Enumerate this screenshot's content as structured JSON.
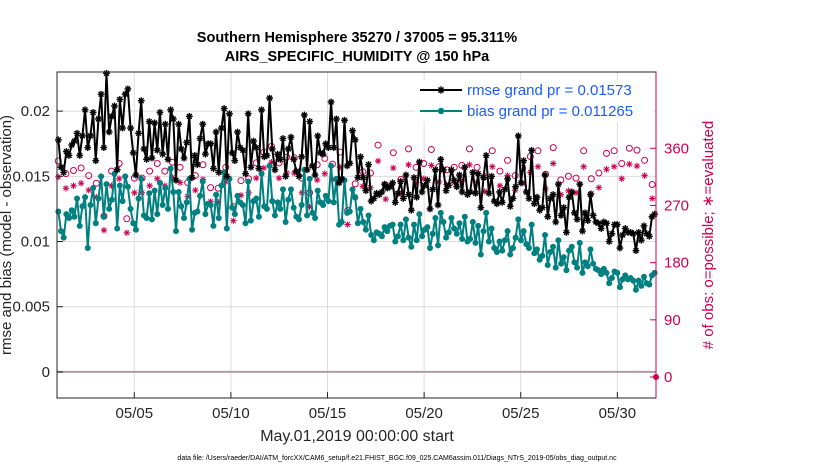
{
  "chart_data": {
    "type": "line",
    "title": "Southern Hemisphere 35270 / 37005 = 95.311%",
    "subtitle": "AIRS_SPECIFIC_HUMIDITY @ 150 hPa",
    "xlabel": "May.01,2019 00:00:00 start",
    "ylabel": "rmse and bias (model - observation)",
    "ylabel_right": "# of obs: o=possible; ∗=evaluated",
    "footnote": "data file: /Users/raeder/DAI/ATM_forcXX/CAM6_setup/f.e21.FHIST_BGC.f09_025.CAM6assim.011/Diags_NTrS_2019-05/obs_diag_output.nc",
    "xlim": [
      1,
      32
    ],
    "ylim": [
      -0.002,
      0.023
    ],
    "ylim_right": [
      -33,
      480
    ],
    "x_ticks": [
      5,
      10,
      15,
      20,
      25,
      30
    ],
    "x_tick_labels": [
      "05/05",
      "05/10",
      "05/15",
      "05/20",
      "05/25",
      "05/30"
    ],
    "y_ticks": [
      0,
      0.005,
      0.01,
      0.015,
      0.02
    ],
    "y_tick_labels": [
      "0",
      "0.005",
      "0.01",
      "0.015",
      "0.02"
    ],
    "y2_ticks": [
      0,
      90,
      180,
      270,
      360
    ],
    "y2_tick_labels": [
      "0",
      "90",
      "180",
      "270",
      "360"
    ],
    "grid": true,
    "legend_position": "top-right",
    "series": [
      {
        "name": "rmse grand pr = 0.01573",
        "color": "#000000",
        "marker": "asterisk",
        "values": [
          0.0178,
          0.0157,
          0.0153,
          0.0169,
          0.0166,
          0.0174,
          0.0177,
          0.0183,
          0.0166,
          0.0181,
          0.0201,
          0.0172,
          0.0181,
          0.0199,
          0.0162,
          0.0194,
          0.0213,
          0.0172,
          0.0229,
          0.0184,
          0.0196,
          0.0204,
          0.0155,
          0.0209,
          0.0187,
          0.0213,
          0.0217,
          0.0187,
          0.0168,
          0.0151,
          0.0183,
          0.0208,
          0.0171,
          0.0163,
          0.0192,
          0.0164,
          0.0191,
          0.017,
          0.0199,
          0.0167,
          0.019,
          0.0163,
          0.0201,
          0.0194,
          0.0147,
          0.019,
          0.0171,
          0.0164,
          0.0176,
          0.0196,
          0.0149,
          0.0166,
          0.0159,
          0.0179,
          0.019,
          0.0167,
          0.0175,
          0.0175,
          0.0156,
          0.0184,
          0.0153,
          0.0187,
          0.0202,
          0.015,
          0.0198,
          0.0168,
          0.0162,
          0.0184,
          0.0172,
          0.017,
          0.0152,
          0.0198,
          0.0157,
          0.0177,
          0.0172,
          0.0156,
          0.0201,
          0.0165,
          0.0166,
          0.021,
          0.0171,
          0.0155,
          0.0167,
          0.0163,
          0.0179,
          0.015,
          0.0171,
          0.018,
          0.0163,
          0.0154,
          0.015,
          0.0165,
          0.0197,
          0.0155,
          0.0192,
          0.0158,
          0.0151,
          0.0181,
          0.0168,
          0.0167,
          0.0175,
          0.0172,
          0.0207,
          0.0172,
          0.0194,
          0.0145,
          0.0148,
          0.0193,
          0.0158,
          0.016,
          0.0185,
          0.0178,
          0.0149,
          0.0165,
          0.0149,
          0.0139,
          0.0159,
          0.0131,
          0.0133,
          0.0137,
          0.0136,
          0.0138,
          0.0144,
          0.0141,
          0.0142,
          0.0145,
          0.013,
          0.0137,
          0.0146,
          0.0133,
          0.0151,
          0.0136,
          0.0124,
          0.0149,
          0.0134,
          0.0161,
          0.0138,
          0.0143,
          0.0147,
          0.0125,
          0.014,
          0.0155,
          0.0128,
          0.0163,
          0.0155,
          0.0139,
          0.0143,
          0.0155,
          0.0147,
          0.0142,
          0.0151,
          0.0138,
          0.0157,
          0.0136,
          0.0138,
          0.0153,
          0.0137,
          0.0152,
          0.0126,
          0.0149,
          0.0166,
          0.0137,
          0.015,
          0.0131,
          0.0129,
          0.0138,
          0.013,
          0.014,
          0.0148,
          0.0127,
          0.0133,
          0.0142,
          0.0181,
          0.0145,
          0.0162,
          0.0138,
          0.0133,
          0.017,
          0.0129,
          0.0134,
          0.0124,
          0.0126,
          0.0151,
          0.0119,
          0.0133,
          0.0136,
          0.0115,
          0.0144,
          0.012,
          0.0126,
          0.0107,
          0.0134,
          0.0138,
          0.0122,
          0.0117,
          0.0144,
          0.0108,
          0.0122,
          0.0116,
          0.0136,
          0.012,
          0.0115,
          0.0114,
          0.011,
          0.0115,
          0.0114,
          0.01,
          0.0106,
          0.0113,
          0.0113,
          0.0095,
          0.0105,
          0.011,
          0.0107,
          0.0107,
          0.0106,
          0.0093,
          0.0107,
          0.0101,
          0.0112,
          0.0106,
          0.0104,
          0.0119,
          0.0121
        ]
      },
      {
        "name": "bias grand pr = 0.011265",
        "color": "#008080",
        "marker": "circle",
        "values": [
          0.0123,
          0.0108,
          0.0103,
          0.0121,
          0.0118,
          0.0124,
          0.0119,
          0.0133,
          0.0112,
          0.0127,
          0.0134,
          0.0095,
          0.0128,
          0.0141,
          0.0114,
          0.0133,
          0.015,
          0.0119,
          0.0144,
          0.0125,
          0.0132,
          0.0152,
          0.011,
          0.0143,
          0.0131,
          0.015,
          0.0142,
          0.0125,
          0.0114,
          0.0109,
          0.0133,
          0.0148,
          0.012,
          0.0118,
          0.0137,
          0.0117,
          0.0139,
          0.0121,
          0.0145,
          0.0128,
          0.0141,
          0.0125,
          0.0156,
          0.0138,
          0.0108,
          0.0138,
          0.0127,
          0.0118,
          0.013,
          0.0148,
          0.0109,
          0.0122,
          0.0123,
          0.0135,
          0.0146,
          0.0121,
          0.0129,
          0.0128,
          0.0112,
          0.0136,
          0.0118,
          0.0143,
          0.0153,
          0.011,
          0.0148,
          0.0126,
          0.0121,
          0.0135,
          0.013,
          0.0128,
          0.0114,
          0.0146,
          0.0116,
          0.0131,
          0.0133,
          0.0119,
          0.0152,
          0.0127,
          0.0125,
          0.0158,
          0.0131,
          0.012,
          0.013,
          0.0125,
          0.014,
          0.0115,
          0.0132,
          0.014,
          0.0126,
          0.0119,
          0.0117,
          0.0128,
          0.0155,
          0.012,
          0.0148,
          0.0122,
          0.0118,
          0.0139,
          0.013,
          0.0128,
          0.0135,
          0.0131,
          0.0158,
          0.013,
          0.0148,
          0.0113,
          0.0115,
          0.0147,
          0.0122,
          0.0123,
          0.014,
          0.0134,
          0.0114,
          0.0125,
          0.0115,
          0.0109,
          0.012,
          0.0105,
          0.0101,
          0.0107,
          0.0106,
          0.0104,
          0.0111,
          0.0108,
          0.0112,
          0.0113,
          0.01,
          0.0104,
          0.0113,
          0.0101,
          0.0117,
          0.0103,
          0.0096,
          0.0113,
          0.0101,
          0.0121,
          0.0104,
          0.0109,
          0.0111,
          0.0095,
          0.0106,
          0.0118,
          0.0097,
          0.0122,
          0.0115,
          0.0103,
          0.0107,
          0.0118,
          0.011,
          0.0106,
          0.0114,
          0.0102,
          0.0119,
          0.01,
          0.0102,
          0.0115,
          0.0099,
          0.0112,
          0.009,
          0.0108,
          0.0122,
          0.01,
          0.011,
          0.0095,
          0.0092,
          0.01,
          0.0093,
          0.0101,
          0.0108,
          0.009,
          0.0095,
          0.0103,
          0.0117,
          0.0101,
          0.0108,
          0.0098,
          0.0095,
          0.0113,
          0.0091,
          0.0094,
          0.0086,
          0.0089,
          0.0105,
          0.0082,
          0.0092,
          0.0096,
          0.008,
          0.0101,
          0.0083,
          0.0088,
          0.0078,
          0.0093,
          0.0096,
          0.0084,
          0.008,
          0.0099,
          0.0076,
          0.0084,
          0.0081,
          0.0094,
          0.0083,
          0.0079,
          0.0078,
          0.0075,
          0.0079,
          0.0076,
          0.0068,
          0.0072,
          0.0077,
          0.0076,
          0.0065,
          0.0071,
          0.0074,
          0.0071,
          0.0072,
          0.007,
          0.0063,
          0.007,
          0.0066,
          0.0073,
          0.0068,
          0.0067,
          0.0074,
          0.0076
        ]
      },
      {
        "name": "possible obs",
        "color": "#cc0052",
        "marker": "open-circle",
        "axis": "right",
        "values": [
          340,
          304,
          290,
          320,
          317,
          332,
          325,
          284,
          276,
          329,
          232,
          317,
          317,
          359,
          252,
          305,
          347,
          244,
          253,
          331,
          292,
          324,
          315,
          239,
          336,
          273,
          274,
          249,
          353,
          334,
          313,
          278,
          256,
          313,
          298,
          256,
          324,
          235,
          273,
          336,
          253,
          315,
          324,
          253,
          304,
          338,
          310,
          312,
          330,
          334,
          323,
          306,
          253,
          341,
          317,
          323,
          285,
          334,
          277,
          269,
          298,
          288,
          342,
          297,
          315,
          234,
          330,
          308,
          273,
          268,
          358,
          320,
          309,
          322,
          315,
          312,
          350,
          332,
          337,
          314,
          290,
          354,
          341,
          318,
          363,
          347,
          306,
          337,
          333,
          330,
          346,
          340,
          293,
          345,
          333,
          354,
          313,
          360,
          308,
          290,
          329,
          296,
          334,
          288,
          352,
          344,
          335,
          368,
          335,
          318,
          326,
          354,
          290,
          317,
          262,
          302,
          318,
          304,
          339,
          296,
          323,
          329,
          307,
          321,
          342,
          300,
          365,
          361,
          351,
          302,
          342,
          346,
          353,
          340,
          327,
          311,
          341,
          310,
          359,
          312,
          320,
          330,
          339,
          318,
          336,
          327,
          305,
          358,
          354,
          363,
          331,
          315,
          349,
          326,
          352,
          337,
          330,
          300,
          356,
          333,
          325,
          364,
          359,
          327,
          321,
          330,
          335,
          313,
          315,
          355,
          338,
          356,
          321,
          354,
          324,
          333,
          299,
          341,
          312,
          352,
          317,
          352,
          295,
          329,
          355,
          302,
          347,
          321,
          305,
          356,
          340,
          349,
          319,
          306,
          318,
          361,
          322,
          332,
          310,
          362,
          326,
          316,
          333,
          302,
          313,
          344,
          359,
          356,
          311,
          325,
          312,
          330,
          323,
          321,
          346,
          330,
          352,
          309,
          328,
          356,
          362,
          351,
          336,
          343,
          344,
          360,
          301,
          329,
          357,
          334,
          334,
          341,
          307,
          320,
          303,
          318
        ]
      },
      {
        "name": "evaluated obs",
        "color": "#cc0052",
        "marker": "asterisk",
        "axis": "right",
        "values": [
          315,
          281,
          269,
          297,
          294,
          309,
          301,
          261,
          253,
          305,
          211,
          294,
          294,
          334,
          231,
          283,
          323,
          222,
          231,
          308,
          271,
          301,
          292,
          218,
          312,
          250,
          251,
          227,
          328,
          311,
          290,
          256,
          234,
          290,
          276,
          234,
          301,
          215,
          251,
          312,
          231,
          292,
          301,
          231,
          281,
          314,
          288,
          290,
          306,
          311,
          299,
          284,
          231,
          316,
          294,
          299,
          263,
          311,
          255,
          247,
          276,
          266,
          318,
          275,
          292,
          213,
          307,
          285,
          251,
          246,
          334,
          297,
          286,
          299,
          292,
          290,
          325,
          308,
          313,
          291,
          268,
          329,
          317,
          295,
          338,
          322,
          284,
          313,
          309,
          307,
          321,
          316,
          271,
          321,
          309,
          330,
          290,
          335,
          286,
          268,
          305,
          274,
          310,
          266,
          328,
          320,
          311,
          343,
          311,
          295,
          302,
          330,
          268,
          294,
          240,
          279,
          295,
          282,
          315,
          274,
          300,
          305,
          284,
          298,
          318,
          278,
          340,
          336,
          326,
          280,
          318,
          322,
          329,
          316,
          303,
          288,
          317,
          287,
          334,
          290,
          297,
          306,
          315,
          295,
          312,
          303,
          283,
          333,
          330,
          339,
          307,
          292,
          325,
          303,
          328,
          313,
          306,
          278,
          331,
          309,
          301,
          339,
          334,
          303,
          298,
          306,
          311,
          290,
          292,
          330,
          314,
          331,
          298,
          329,
          301,
          309,
          277,
          317,
          289,
          327,
          294,
          327,
          273,
          305,
          330,
          280,
          322,
          298,
          283,
          331,
          316,
          324,
          296,
          284,
          295,
          336,
          299,
          308,
          287,
          337,
          302,
          293,
          309,
          280,
          290,
          320,
          334,
          331,
          288,
          301,
          289,
          306,
          300,
          298,
          322,
          306,
          327,
          287,
          304,
          331,
          337,
          326,
          312,
          319,
          320,
          335,
          279,
          305,
          332,
          310,
          310,
          317,
          284,
          297,
          281,
          295
        ]
      }
    ]
  }
}
